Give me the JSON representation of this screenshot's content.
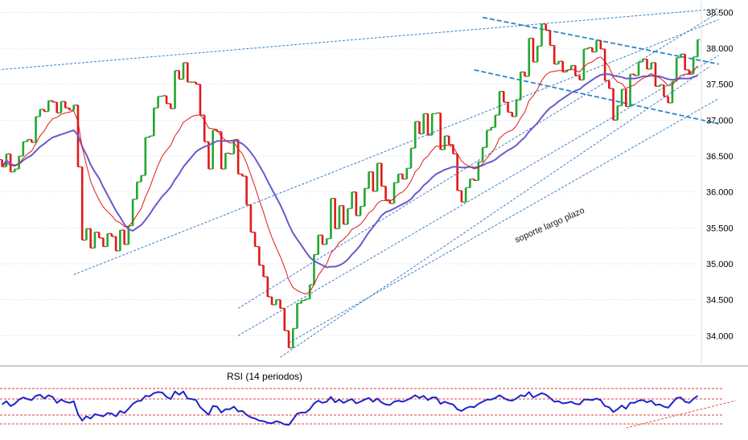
{
  "chart_data": [
    {
      "type": "candlestick",
      "title": "",
      "xlabel": "",
      "ylabel": "",
      "ylim": [
        33.6,
        38.65
      ],
      "y_tick_labels": [
        "38.500",
        "38.000",
        "37.500",
        "37.000",
        "36.500",
        "36.000",
        "35.500",
        "35.000",
        "34.500",
        "34.000"
      ],
      "y_ticks": [
        38.5,
        38.0,
        37.5,
        37.0,
        36.5,
        36.0,
        35.5,
        35.0,
        34.5,
        34.0
      ],
      "grid": true,
      "colors": {
        "up": "#22a632",
        "down": "#e01919",
        "fast_ma": "#e01919",
        "slow_ma": "#6a5acd",
        "trendline": "#3d7fc2",
        "wedge": "#2b86c5"
      },
      "ohlc_open": [
        36.45,
        36.35,
        36.53,
        36.28,
        36.32,
        36.5,
        36.7,
        36.73,
        36.69,
        37.05,
        37.15,
        37.12,
        37.27,
        37.25,
        37.1,
        37.26,
        37.17,
        37.14,
        37.21,
        36.35,
        35.33,
        35.49,
        35.22,
        35.44,
        35.36,
        35.24,
        35.42,
        35.38,
        35.18,
        35.47,
        35.27,
        35.53,
        35.9,
        36.14,
        36.23,
        36.76,
        36.78,
        37.17,
        37.33,
        37.34,
        37.23,
        37.16,
        37.69,
        37.57,
        37.8,
        37.53,
        37.53,
        37.5,
        37.07,
        36.7,
        36.32,
        36.86,
        36.84,
        36.32,
        36.54,
        36.53,
        36.73,
        36.25,
        36.22,
        35.82,
        35.44,
        35.24,
        34.98,
        34.82,
        34.54,
        34.43,
        34.5,
        34.38,
        34.07,
        33.83,
        34.1,
        34.45,
        34.49,
        34.51,
        34.71,
        35.13,
        35.4,
        35.27,
        35.35,
        35.91,
        35.49,
        35.81,
        35.55,
        35.77,
        36.0,
        35.67,
        35.8,
        36.05,
        36.28,
        36.01,
        36.4,
        36.08,
        35.89,
        35.84,
        36.13,
        36.25,
        36.18,
        36.33,
        36.61,
        36.98,
        36.81,
        37.09,
        36.79,
        37.09,
        37.1,
        36.59,
        36.78,
        36.66,
        36.53,
        36.02,
        35.86,
        36.06,
        36.18,
        36.16,
        36.42,
        36.62,
        36.86,
        36.9,
        37.07,
        37.4,
        37.25,
        37.11,
        37.05,
        37.28,
        37.67,
        37.61,
        38.14,
        37.81,
        38.03,
        38.34,
        38.25,
        38.04,
        37.78,
        37.82,
        37.67,
        37.7,
        37.76,
        37.62,
        37.56,
        37.99,
        38.01,
        37.95,
        38.11,
        37.99,
        37.55,
        37.44,
        37.0,
        37.2,
        37.43,
        37.19,
        37.64,
        37.62,
        37.81,
        37.85,
        37.71,
        37.8,
        37.47,
        37.49,
        37.33,
        37.24,
        37.54,
        37.87,
        37.92,
        37.7,
        37.64,
        37.88
      ],
      "ohlc_close": [
        36.35,
        36.53,
        36.28,
        36.32,
        36.5,
        36.7,
        36.73,
        36.69,
        37.05,
        37.15,
        37.12,
        37.27,
        37.25,
        37.1,
        37.26,
        37.17,
        37.14,
        37.21,
        36.35,
        35.33,
        35.49,
        35.22,
        35.44,
        35.36,
        35.24,
        35.42,
        35.38,
        35.18,
        35.47,
        35.27,
        35.53,
        35.9,
        36.14,
        36.23,
        36.76,
        36.78,
        37.17,
        37.33,
        37.34,
        37.23,
        37.16,
        37.69,
        37.57,
        37.8,
        37.53,
        37.53,
        37.5,
        37.07,
        36.7,
        36.32,
        36.86,
        36.84,
        36.32,
        36.54,
        36.53,
        36.73,
        36.25,
        36.22,
        35.82,
        35.44,
        35.24,
        34.98,
        34.82,
        34.54,
        34.43,
        34.5,
        34.38,
        34.07,
        33.83,
        34.1,
        34.45,
        34.49,
        34.51,
        34.71,
        35.13,
        35.4,
        35.27,
        35.35,
        35.91,
        35.49,
        35.81,
        35.55,
        35.77,
        36.0,
        35.67,
        35.8,
        36.05,
        36.28,
        36.01,
        36.4,
        36.08,
        35.89,
        35.84,
        36.13,
        36.25,
        36.18,
        36.33,
        36.61,
        36.98,
        36.81,
        37.09,
        36.79,
        37.09,
        37.1,
        36.59,
        36.78,
        36.66,
        36.53,
        36.02,
        35.86,
        36.06,
        36.18,
        36.16,
        36.42,
        36.62,
        36.86,
        36.9,
        37.07,
        37.4,
        37.25,
        37.11,
        37.05,
        37.28,
        37.67,
        37.61,
        38.14,
        37.81,
        38.03,
        38.34,
        38.25,
        38.04,
        37.78,
        37.82,
        37.67,
        37.7,
        37.76,
        37.62,
        37.56,
        37.99,
        38.01,
        37.95,
        38.11,
        37.99,
        37.55,
        37.44,
        37.0,
        37.2,
        37.43,
        37.19,
        37.64,
        37.62,
        37.81,
        37.85,
        37.71,
        37.8,
        37.47,
        37.49,
        37.33,
        37.24,
        37.54,
        37.87,
        37.92,
        37.7,
        37.64,
        37.88,
        38.12
      ],
      "ma_fast": [
        36.35,
        36.4,
        36.37,
        36.36,
        36.39,
        36.47,
        36.53,
        36.57,
        36.67,
        36.78,
        36.85,
        36.95,
        37.02,
        37.04,
        37.08,
        37.1,
        37.11,
        37.13,
        36.98,
        36.62,
        36.38,
        36.15,
        36.01,
        35.89,
        35.79,
        35.73,
        35.67,
        35.6,
        35.57,
        35.52,
        35.52,
        35.59,
        35.68,
        35.77,
        35.93,
        36.06,
        36.22,
        36.37,
        36.5,
        36.58,
        36.65,
        36.78,
        36.86,
        36.97,
        37.01,
        37.05,
        37.07,
        37.07,
        37.0,
        36.89,
        36.88,
        36.87,
        36.77,
        36.72,
        36.68,
        36.69,
        36.6,
        36.53,
        36.4,
        36.24,
        36.07,
        35.89,
        35.72,
        35.53,
        35.37,
        35.23,
        35.1,
        34.95,
        34.78,
        34.67,
        34.63,
        34.6,
        34.58,
        34.61,
        34.71,
        34.84,
        34.92,
        35.0,
        35.15,
        35.21,
        35.3,
        35.34,
        35.4,
        35.48,
        35.51,
        35.55,
        35.62,
        35.71,
        35.75,
        35.84,
        35.88,
        35.88,
        35.87,
        35.91,
        35.97,
        36.0,
        36.06,
        36.15,
        36.28,
        36.34,
        36.45,
        36.5,
        36.58,
        36.64,
        36.63,
        36.65,
        36.65,
        36.63,
        36.53,
        36.43,
        36.38,
        36.35,
        36.32,
        36.34,
        36.39,
        36.47,
        36.54,
        36.62,
        36.75,
        36.8,
        36.84,
        36.86,
        36.92,
        37.03,
        37.11,
        37.27,
        37.34,
        37.43,
        37.55,
        37.63,
        37.67,
        37.68,
        37.69,
        37.69,
        37.69,
        37.71,
        37.69,
        37.67,
        37.74,
        37.79,
        37.81,
        37.86,
        37.88,
        37.82,
        37.74,
        37.6,
        37.53,
        37.51,
        37.44,
        37.47,
        37.49,
        37.54,
        37.58,
        37.61,
        37.65,
        37.61,
        37.59,
        37.54,
        37.48,
        37.49,
        37.56,
        37.62,
        37.64,
        37.64,
        37.68,
        37.76
      ],
      "ma_slow": [
        36.35,
        36.44,
        36.39,
        36.37,
        36.39,
        36.44,
        36.48,
        36.51,
        36.57,
        36.63,
        36.67,
        36.72,
        36.76,
        36.78,
        36.8,
        36.82,
        36.84,
        36.86,
        36.79,
        36.63,
        36.52,
        36.38,
        36.28,
        36.19,
        36.07,
        35.96,
        35.85,
        35.74,
        35.65,
        35.55,
        35.48,
        35.46,
        35.5,
        35.54,
        35.61,
        35.69,
        35.78,
        35.86,
        35.94,
        36.0,
        36.07,
        36.17,
        36.25,
        36.35,
        36.42,
        36.49,
        36.56,
        36.6,
        36.63,
        36.65,
        36.68,
        36.71,
        36.71,
        36.71,
        36.71,
        36.72,
        36.7,
        36.67,
        36.62,
        36.55,
        36.47,
        36.37,
        36.27,
        36.15,
        36.04,
        35.93,
        35.82,
        35.69,
        35.55,
        35.43,
        35.34,
        35.26,
        35.17,
        35.09,
        35.04,
        35.01,
        34.98,
        34.95,
        34.96,
        34.96,
        34.98,
        35.01,
        35.06,
        35.13,
        35.19,
        35.26,
        35.35,
        35.44,
        35.51,
        35.59,
        35.67,
        35.72,
        35.74,
        35.77,
        35.8,
        35.83,
        35.86,
        35.9,
        35.97,
        36.02,
        36.09,
        36.14,
        36.2,
        36.25,
        36.28,
        36.31,
        36.33,
        36.35,
        36.35,
        36.34,
        36.34,
        36.35,
        36.34,
        36.35,
        36.37,
        36.4,
        36.42,
        36.45,
        36.5,
        36.54,
        36.58,
        36.61,
        36.65,
        36.71,
        36.76,
        36.84,
        36.9,
        36.96,
        37.04,
        37.11,
        37.17,
        37.21,
        37.26,
        37.3,
        37.34,
        37.38,
        37.41,
        37.43,
        37.48,
        37.52,
        37.56,
        37.6,
        37.63,
        37.64,
        37.64,
        37.62,
        37.61,
        37.6,
        37.58,
        37.58,
        37.58,
        37.59,
        37.61,
        37.61,
        37.62,
        37.61,
        37.61,
        37.59,
        37.57,
        37.56,
        37.57,
        37.58,
        37.58,
        37.58,
        37.6,
        37.62
      ],
      "rsi": [
        52,
        58,
        49,
        53,
        61,
        65,
        62,
        60,
        68,
        70,
        63,
        69,
        66,
        55,
        61,
        57,
        55,
        58,
        34,
        22,
        30,
        26,
        34,
        32,
        30,
        36,
        35,
        30,
        40,
        36,
        44,
        53,
        58,
        59,
        68,
        67,
        73,
        75,
        74,
        66,
        62,
        76,
        70,
        76,
        63,
        62,
        60,
        47,
        40,
        33,
        49,
        48,
        37,
        43,
        43,
        48,
        39,
        40,
        33,
        28,
        26,
        22,
        21,
        18,
        17,
        21,
        19,
        15,
        14,
        24,
        35,
        37,
        37,
        43,
        54,
        59,
        55,
        57,
        66,
        56,
        61,
        55,
        59,
        62,
        54,
        57,
        61,
        64,
        57,
        63,
        56,
        52,
        51,
        57,
        59,
        57,
        60,
        64,
        69,
        64,
        68,
        60,
        65,
        65,
        53,
        57,
        54,
        52,
        43,
        40,
        45,
        48,
        47,
        53,
        57,
        61,
        61,
        64,
        69,
        64,
        60,
        59,
        63,
        69,
        67,
        75,
        65,
        69,
        73,
        70,
        64,
        57,
        58,
        54,
        55,
        57,
        53,
        52,
        61,
        61,
        60,
        63,
        60,
        49,
        47,
        38,
        43,
        50,
        44,
        55,
        55,
        59,
        60,
        56,
        59,
        51,
        52,
        48,
        46,
        55,
        64,
        65,
        57,
        55,
        62,
        68
      ],
      "annotations": [
        "soporte largo plazo"
      ],
      "panel_label": "RSI (14 periodos)"
    }
  ]
}
